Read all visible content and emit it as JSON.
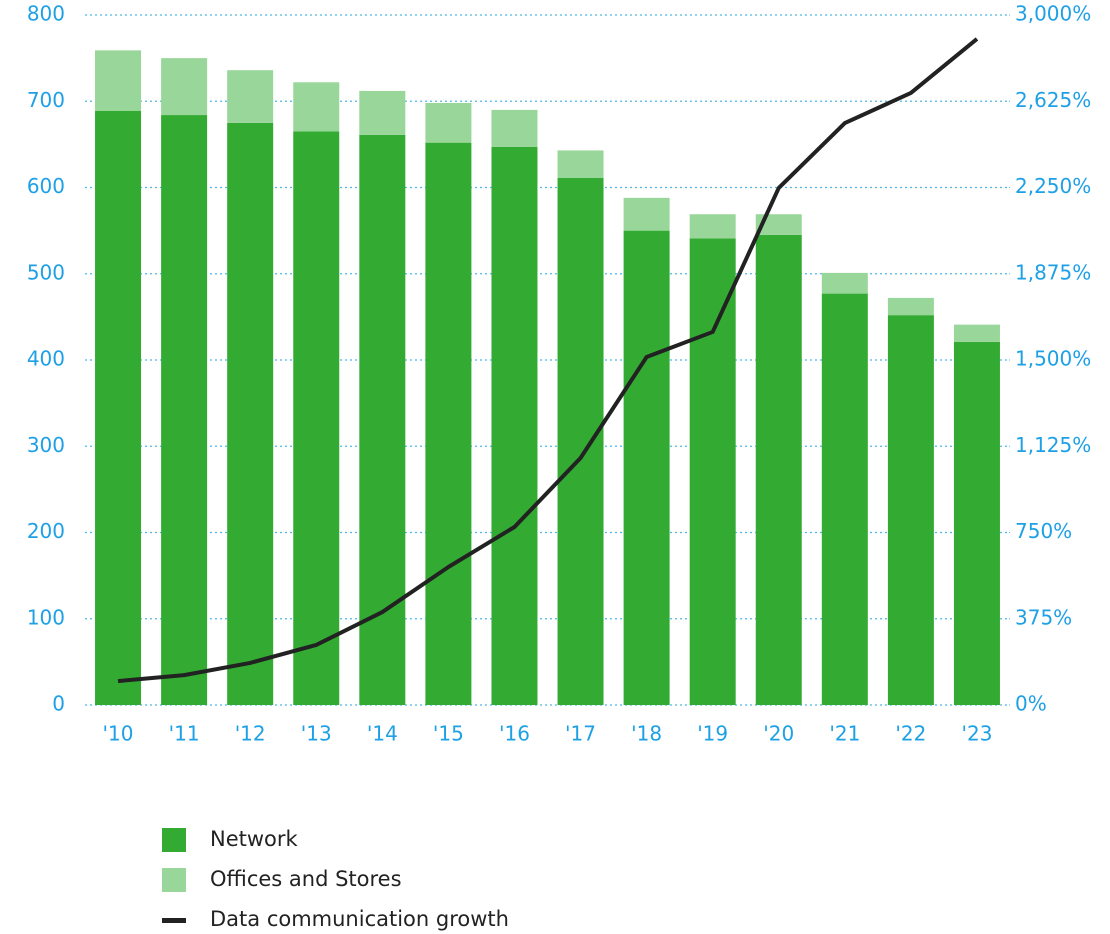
{
  "chart_data": {
    "type": "bar",
    "stacked": true,
    "categories": [
      "'10",
      "'11",
      "'12",
      "'13",
      "'14",
      "'15",
      "'16",
      "'17",
      "'18",
      "'19",
      "'20",
      "'21",
      "'22",
      "'23"
    ],
    "series": [
      {
        "name": "Network",
        "color": "#33ab33",
        "values": [
          689,
          684,
          675,
          665,
          661,
          652,
          647,
          611,
          550,
          541,
          545,
          477,
          452,
          421
        ]
      },
      {
        "name": "Offices and Stores",
        "color": "#99d699",
        "values": [
          70,
          66,
          61,
          57,
          51,
          46,
          43,
          32,
          38,
          28,
          24,
          24,
          20,
          20
        ]
      },
      {
        "name": "Data communication growth",
        "color": "#222222",
        "type": "line",
        "axis": "y2",
        "values": [
          104,
          130,
          183,
          261,
          404,
          600,
          774,
          1074,
          1513,
          1622,
          2248,
          2530,
          2661,
          2896
        ]
      }
    ],
    "ylim": [
      0,
      800
    ],
    "yticks": [
      0,
      100,
      200,
      300,
      400,
      500,
      600,
      700,
      800
    ],
    "y2lim": [
      0,
      3000
    ],
    "y2ticks": [
      {
        "value": 0,
        "label": "0%"
      },
      {
        "value": 375,
        "label": "375%"
      },
      {
        "value": 750,
        "label": "750%"
      },
      {
        "value": 1125,
        "label": "1,125%"
      },
      {
        "value": 1500,
        "label": "1,500%"
      },
      {
        "value": 1875,
        "label": "1,875%"
      },
      {
        "value": 2250,
        "label": "2,250%"
      },
      {
        "value": 2625,
        "label": "2,625%"
      },
      {
        "value": 3000,
        "label": "3,000%"
      }
    ],
    "grid": true,
    "legend": "bottom"
  }
}
